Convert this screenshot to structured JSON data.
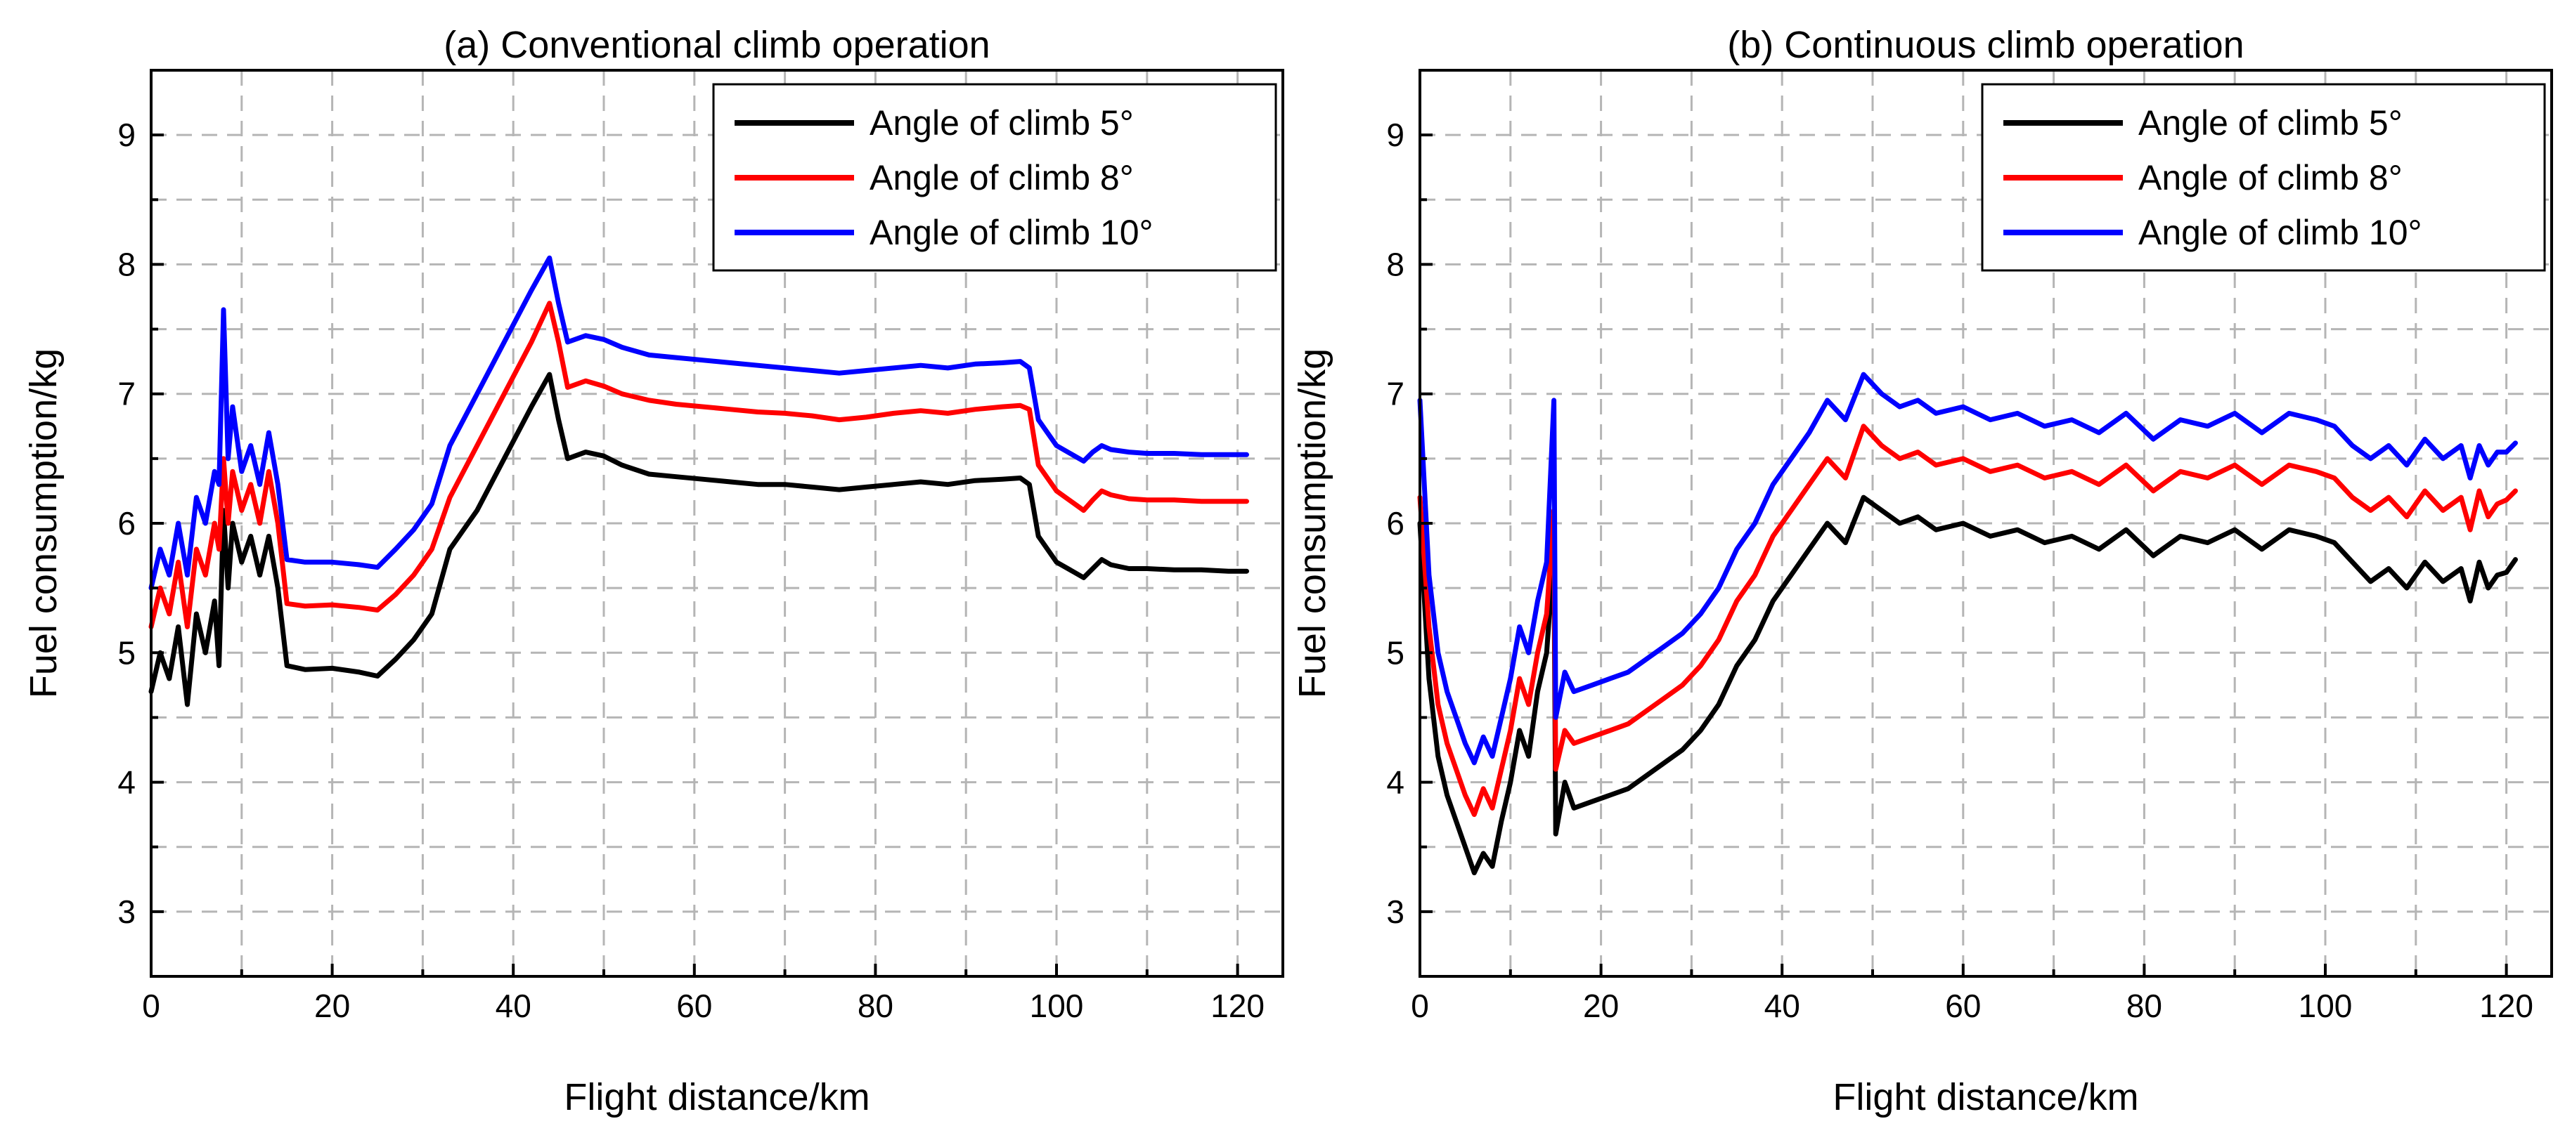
{
  "chart_data": [
    {
      "type": "line",
      "title": "(a) Conventional climb operation",
      "xlabel": "Flight distance/km",
      "ylabel": "Fuel consumption/kg",
      "xlim": [
        0,
        125
      ],
      "ylim": [
        2.5,
        9.5
      ],
      "x_ticks": [
        "0",
        "20",
        "40",
        "60",
        "80",
        "100",
        "120"
      ],
      "y_ticks": [
        "3",
        "4",
        "5",
        "6",
        "7",
        "8",
        "9"
      ],
      "grid": "dashed",
      "legend_position": "top-right",
      "series": [
        {
          "name": "Angle of climb 5°",
          "color": "#000000",
          "x": [
            0,
            1,
            2,
            3,
            4,
            5,
            6,
            7,
            7.5,
            8,
            8.5,
            9,
            10,
            11,
            12,
            13,
            14,
            15,
            17,
            20,
            23,
            25,
            27,
            29,
            31,
            33,
            36,
            39,
            42,
            44,
            45,
            46,
            48,
            50,
            52,
            55,
            58,
            61,
            64,
            67,
            70,
            73,
            76,
            79,
            82,
            85,
            88,
            91,
            94,
            96,
            97,
            98,
            100,
            102,
            103,
            104,
            105,
            106,
            108,
            110,
            113,
            116,
            119,
            121
          ],
          "values": [
            4.7,
            5.0,
            4.8,
            5.2,
            4.6,
            5.3,
            5.0,
            5.4,
            4.9,
            6.1,
            5.5,
            6.0,
            5.7,
            5.9,
            5.6,
            5.9,
            5.5,
            4.9,
            4.87,
            4.88,
            4.85,
            4.82,
            4.95,
            5.1,
            5.3,
            5.8,
            6.1,
            6.5,
            6.9,
            7.15,
            6.8,
            6.5,
            6.55,
            6.52,
            6.45,
            6.38,
            6.36,
            6.34,
            6.32,
            6.3,
            6.3,
            6.28,
            6.26,
            6.28,
            6.3,
            6.32,
            6.3,
            6.33,
            6.34,
            6.35,
            6.3,
            5.9,
            5.7,
            5.62,
            5.58,
            5.65,
            5.72,
            5.68,
            5.65,
            5.65,
            5.64,
            5.64,
            5.63,
            5.63
          ]
        },
        {
          "name": "Angle of climb 8°",
          "color": "#ff0000",
          "x": [
            0,
            1,
            2,
            3,
            4,
            5,
            6,
            7,
            7.5,
            8,
            8.5,
            9,
            10,
            11,
            12,
            13,
            14,
            15,
            17,
            20,
            23,
            25,
            27,
            29,
            31,
            33,
            36,
            39,
            42,
            44,
            45,
            46,
            48,
            50,
            52,
            55,
            58,
            61,
            64,
            67,
            70,
            73,
            76,
            79,
            82,
            85,
            88,
            91,
            94,
            96,
            97,
            98,
            100,
            102,
            103,
            104,
            105,
            106,
            108,
            110,
            113,
            116,
            119,
            121
          ],
          "values": [
            5.2,
            5.5,
            5.3,
            5.7,
            5.2,
            5.8,
            5.6,
            6.0,
            5.8,
            6.5,
            6.0,
            6.4,
            6.1,
            6.3,
            6.0,
            6.4,
            6.0,
            5.38,
            5.36,
            5.37,
            5.35,
            5.33,
            5.45,
            5.6,
            5.8,
            6.2,
            6.6,
            7.0,
            7.4,
            7.7,
            7.4,
            7.05,
            7.1,
            7.06,
            7.0,
            6.95,
            6.92,
            6.9,
            6.88,
            6.86,
            6.85,
            6.83,
            6.8,
            6.82,
            6.85,
            6.87,
            6.85,
            6.88,
            6.9,
            6.91,
            6.88,
            6.45,
            6.25,
            6.15,
            6.1,
            6.18,
            6.25,
            6.22,
            6.19,
            6.18,
            6.18,
            6.17,
            6.17,
            6.17
          ]
        },
        {
          "name": "Angle of climb 10°",
          "color": "#0000ff",
          "x": [
            0,
            1,
            2,
            3,
            4,
            5,
            6,
            7,
            7.5,
            8,
            8.5,
            9,
            10,
            11,
            12,
            13,
            14,
            15,
            17,
            20,
            23,
            25,
            27,
            29,
            31,
            33,
            36,
            39,
            42,
            44,
            45,
            46,
            48,
            50,
            52,
            55,
            58,
            61,
            64,
            67,
            70,
            73,
            76,
            79,
            82,
            85,
            88,
            91,
            94,
            96,
            97,
            98,
            100,
            102,
            103,
            104,
            105,
            106,
            108,
            110,
            113,
            116,
            119,
            121
          ],
          "values": [
            5.5,
            5.8,
            5.6,
            6.0,
            5.6,
            6.2,
            6.0,
            6.4,
            6.3,
            7.65,
            6.5,
            6.9,
            6.4,
            6.6,
            6.3,
            6.7,
            6.3,
            5.72,
            5.7,
            5.7,
            5.68,
            5.66,
            5.8,
            5.95,
            6.15,
            6.6,
            7.0,
            7.4,
            7.8,
            8.05,
            7.7,
            7.4,
            7.45,
            7.42,
            7.36,
            7.3,
            7.28,
            7.26,
            7.24,
            7.22,
            7.2,
            7.18,
            7.16,
            7.18,
            7.2,
            7.22,
            7.2,
            7.23,
            7.24,
            7.25,
            7.2,
            6.8,
            6.6,
            6.52,
            6.48,
            6.55,
            6.6,
            6.57,
            6.55,
            6.54,
            6.54,
            6.53,
            6.53,
            6.53
          ]
        }
      ]
    },
    {
      "type": "line",
      "title": "(b) Continuous climb operation",
      "xlabel": "Flight distance/km",
      "ylabel": "Fuel consumption/kg",
      "xlim": [
        0,
        125
      ],
      "ylim": [
        2.5,
        9.5
      ],
      "x_ticks": [
        "0",
        "20",
        "40",
        "60",
        "80",
        "100",
        "120"
      ],
      "y_ticks": [
        "3",
        "4",
        "5",
        "6",
        "7",
        "8",
        "9"
      ],
      "grid": "dashed",
      "legend_position": "top-right",
      "series": [
        {
          "name": "Angle of climb 5°",
          "color": "#000000",
          "x": [
            0,
            1,
            2,
            3,
            4,
            5,
            6,
            7,
            8,
            9,
            10,
            11,
            12,
            13,
            14,
            14.8,
            15,
            16,
            17,
            19,
            21,
            23,
            25,
            27,
            29,
            31,
            33,
            35,
            37,
            39,
            41,
            43,
            45,
            47,
            49,
            51,
            53,
            55,
            57,
            60,
            63,
            66,
            69,
            72,
            75,
            78,
            81,
            84,
            87,
            90,
            93,
            96,
            99,
            101,
            103,
            105,
            107,
            109,
            111,
            113,
            115,
            116,
            117,
            118,
            119,
            120,
            121
          ],
          "values": [
            6.0,
            4.8,
            4.2,
            3.9,
            3.7,
            3.5,
            3.3,
            3.45,
            3.35,
            3.7,
            4.0,
            4.4,
            4.2,
            4.7,
            5.0,
            5.8,
            3.6,
            4.0,
            3.8,
            3.85,
            3.9,
            3.95,
            4.05,
            4.15,
            4.25,
            4.4,
            4.6,
            4.9,
            5.1,
            5.4,
            5.6,
            5.8,
            6.0,
            5.85,
            6.2,
            6.1,
            6.0,
            6.05,
            5.95,
            6.0,
            5.9,
            5.95,
            5.85,
            5.9,
            5.8,
            5.95,
            5.75,
            5.9,
            5.85,
            5.95,
            5.8,
            5.95,
            5.9,
            5.85,
            5.7,
            5.55,
            5.65,
            5.5,
            5.7,
            5.55,
            5.65,
            5.4,
            5.7,
            5.5,
            5.6,
            5.62,
            5.72
          ]
        },
        {
          "name": "Angle of climb 8°",
          "color": "#ff0000",
          "x": [
            0,
            1,
            2,
            3,
            4,
            5,
            6,
            7,
            8,
            9,
            10,
            11,
            12,
            13,
            14,
            14.8,
            15,
            16,
            17,
            19,
            21,
            23,
            25,
            27,
            29,
            31,
            33,
            35,
            37,
            39,
            41,
            43,
            45,
            47,
            49,
            51,
            53,
            55,
            57,
            60,
            63,
            66,
            69,
            72,
            75,
            78,
            81,
            84,
            87,
            90,
            93,
            96,
            99,
            101,
            103,
            105,
            107,
            109,
            111,
            113,
            115,
            116,
            117,
            118,
            119,
            120,
            121
          ],
          "values": [
            6.2,
            5.2,
            4.6,
            4.3,
            4.1,
            3.9,
            3.75,
            3.95,
            3.8,
            4.1,
            4.4,
            4.8,
            4.6,
            5.0,
            5.3,
            6.1,
            4.1,
            4.4,
            4.3,
            4.35,
            4.4,
            4.45,
            4.55,
            4.65,
            4.75,
            4.9,
            5.1,
            5.4,
            5.6,
            5.9,
            6.1,
            6.3,
            6.5,
            6.35,
            6.75,
            6.6,
            6.5,
            6.55,
            6.45,
            6.5,
            6.4,
            6.45,
            6.35,
            6.4,
            6.3,
            6.45,
            6.25,
            6.4,
            6.35,
            6.45,
            6.3,
            6.45,
            6.4,
            6.35,
            6.2,
            6.1,
            6.2,
            6.05,
            6.25,
            6.1,
            6.2,
            5.95,
            6.25,
            6.05,
            6.15,
            6.18,
            6.25
          ]
        },
        {
          "name": "Angle of climb 10°",
          "color": "#0000ff",
          "x": [
            0,
            1,
            2,
            3,
            4,
            5,
            6,
            7,
            8,
            9,
            10,
            11,
            12,
            13,
            14,
            14.8,
            15,
            16,
            17,
            19,
            21,
            23,
            25,
            27,
            29,
            31,
            33,
            35,
            37,
            39,
            41,
            43,
            45,
            47,
            49,
            51,
            53,
            55,
            57,
            60,
            63,
            66,
            69,
            72,
            75,
            78,
            81,
            84,
            87,
            90,
            93,
            96,
            99,
            101,
            103,
            105,
            107,
            109,
            111,
            113,
            115,
            116,
            117,
            118,
            119,
            120,
            121
          ],
          "values": [
            6.95,
            5.6,
            5.0,
            4.7,
            4.5,
            4.3,
            4.15,
            4.35,
            4.2,
            4.5,
            4.8,
            5.2,
            5.0,
            5.4,
            5.7,
            6.95,
            4.5,
            4.85,
            4.7,
            4.75,
            4.8,
            4.85,
            4.95,
            5.05,
            5.15,
            5.3,
            5.5,
            5.8,
            6.0,
            6.3,
            6.5,
            6.7,
            6.95,
            6.8,
            7.15,
            7.0,
            6.9,
            6.95,
            6.85,
            6.9,
            6.8,
            6.85,
            6.75,
            6.8,
            6.7,
            6.85,
            6.65,
            6.8,
            6.75,
            6.85,
            6.7,
            6.85,
            6.8,
            6.75,
            6.6,
            6.5,
            6.6,
            6.45,
            6.65,
            6.5,
            6.6,
            6.35,
            6.6,
            6.45,
            6.55,
            6.55,
            6.62
          ]
        }
      ]
    }
  ]
}
